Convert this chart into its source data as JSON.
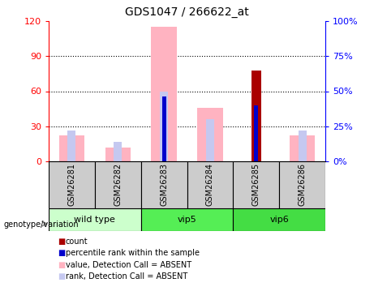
{
  "title": "GDS1047 / 266622_at",
  "samples": [
    "GSM26281",
    "GSM26282",
    "GSM26283",
    "GSM26284",
    "GSM26285",
    "GSM26286"
  ],
  "value_bars": [
    22,
    12,
    115,
    46,
    0,
    22
  ],
  "rank_bars": [
    22,
    14,
    50,
    30,
    43,
    22
  ],
  "count_bars": [
    0,
    0,
    0,
    0,
    78,
    0
  ],
  "percentile_bars": [
    0,
    0,
    46,
    0,
    40,
    0
  ],
  "value_color": "#ffb3c1",
  "rank_color": "#c5c8f0",
  "count_color": "#aa0000",
  "percentile_color": "#0000cc",
  "ylim_left": [
    0,
    120
  ],
  "ylim_right": [
    0,
    100
  ],
  "yticks_left": [
    0,
    30,
    60,
    90,
    120
  ],
  "ytick_labels_left": [
    "0",
    "30",
    "60",
    "90",
    "120"
  ],
  "yticks_right": [
    0,
    25,
    50,
    75,
    100
  ],
  "ytick_labels_right": [
    "0%",
    "25%",
    "50%",
    "75%",
    "100%"
  ],
  "groups": [
    {
      "name": "wild type",
      "start": 0,
      "end": 2,
      "color": "#ccffcc"
    },
    {
      "name": "vip5",
      "start": 2,
      "end": 4,
      "color": "#55ee55"
    },
    {
      "name": "vip6",
      "start": 4,
      "end": 6,
      "color": "#44dd44"
    }
  ],
  "legend_items": [
    {
      "color": "#aa0000",
      "label": "count"
    },
    {
      "color": "#0000cc",
      "label": "percentile rank within the sample"
    },
    {
      "color": "#ffb3c1",
      "label": "value, Detection Call = ABSENT"
    },
    {
      "color": "#c5c8f0",
      "label": "rank, Detection Call = ABSENT"
    }
  ]
}
